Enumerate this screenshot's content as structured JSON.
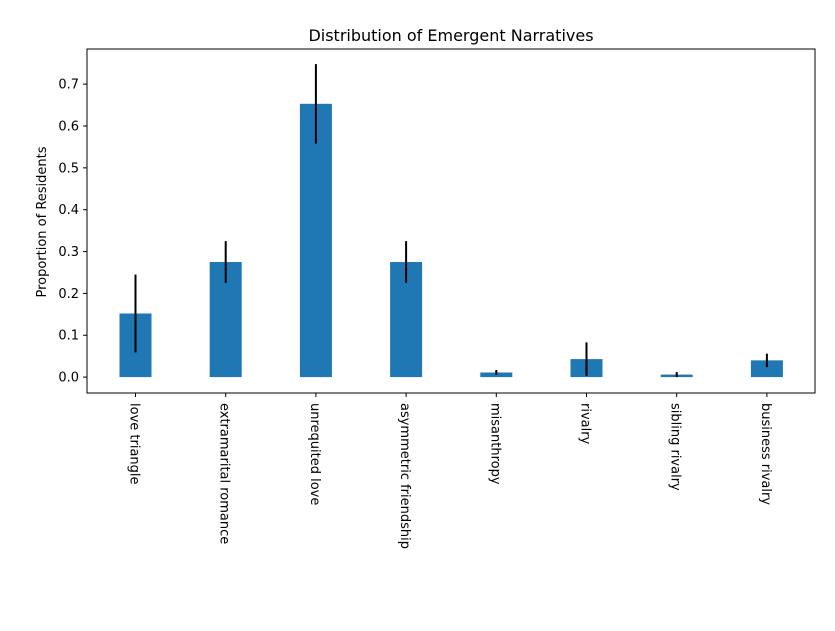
{
  "chart_data": {
    "type": "bar",
    "title": "Distribution of Emergent Narratives",
    "xlabel": "",
    "ylabel": "Proportion of Residents",
    "categories": [
      "love triangle",
      "extramarital romance",
      "unrequited love",
      "asymmetric friendship",
      "misanthropy",
      "rivalry",
      "sibling rivalry",
      "business rivalry"
    ],
    "values": [
      0.152,
      0.275,
      0.653,
      0.275,
      0.011,
      0.043,
      0.006,
      0.04
    ],
    "errors": [
      0.093,
      0.05,
      0.095,
      0.05,
      0.006,
      0.04,
      0.006,
      0.016
    ],
    "yticks": [
      0.0,
      0.1,
      0.2,
      0.3,
      0.4,
      0.5,
      0.6,
      0.7
    ],
    "ytick_labels": [
      "0.0",
      "0.1",
      "0.2",
      "0.3",
      "0.4",
      "0.5",
      "0.6",
      "0.7"
    ],
    "ylim": [
      -0.038,
      0.784
    ],
    "grid": false,
    "colors": {
      "bar": "#1f77b4",
      "error": "#000000",
      "axes": "#000000"
    }
  }
}
